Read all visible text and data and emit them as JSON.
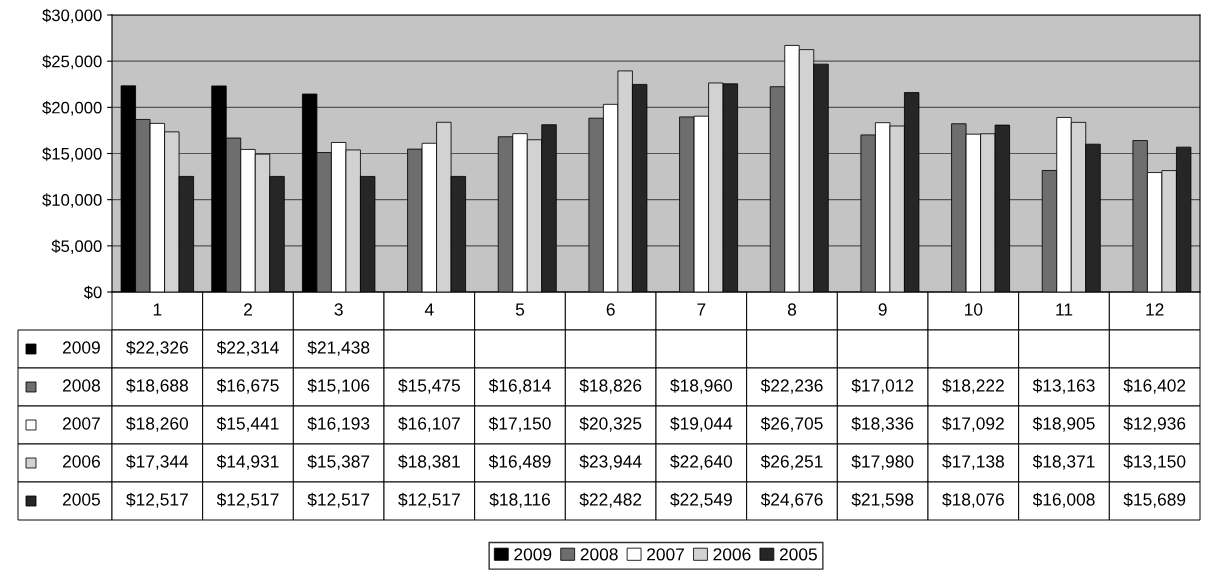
{
  "chart_data": {
    "type": "bar",
    "categories": [
      "1",
      "2",
      "3",
      "4",
      "5",
      "6",
      "7",
      "8",
      "9",
      "10",
      "11",
      "12"
    ],
    "series": [
      {
        "name": "2009",
        "color": "#000000",
        "values": [
          22326,
          22314,
          21438,
          null,
          null,
          null,
          null,
          null,
          null,
          null,
          null,
          null
        ],
        "value_labels": [
          "$22,326",
          "$22,314",
          "$21,438",
          null,
          null,
          null,
          null,
          null,
          null,
          null,
          null,
          null
        ]
      },
      {
        "name": "2008",
        "color": "#6e6e6e",
        "values": [
          18688,
          16675,
          15106,
          15475,
          16814,
          18826,
          18960,
          22236,
          17012,
          18222,
          13163,
          16402
        ],
        "value_labels": [
          "$18,688",
          "$16,675",
          "$15,106",
          "$15,475",
          "$16,814",
          "$18,826",
          "$18,960",
          "$22,236",
          "$17,012",
          "$18,222",
          "$13,163",
          "$16,402"
        ]
      },
      {
        "name": "2007",
        "color": "#ffffff",
        "values": [
          18260,
          15441,
          16193,
          16107,
          17150,
          20325,
          19044,
          26705,
          18336,
          17092,
          18905,
          12936
        ],
        "value_labels": [
          "$18,260",
          "$15,441",
          "$16,193",
          "$16,107",
          "$17,150",
          "$20,325",
          "$19,044",
          "$26,705",
          "$18,336",
          "$17,092",
          "$18,905",
          "$12,936"
        ]
      },
      {
        "name": "2006",
        "color": "#d2d2d2",
        "values": [
          17344,
          14931,
          15387,
          18381,
          16489,
          23944,
          22640,
          26251,
          17980,
          17138,
          18371,
          13150
        ],
        "value_labels": [
          "$17,344",
          "$14,931",
          "$15,387",
          "$18,381",
          "$16,489",
          "$23,944",
          "$22,640",
          "$26,251",
          "$17,980",
          "$17,138",
          "$18,371",
          "$13,150"
        ]
      },
      {
        "name": "2005",
        "color": "#262626",
        "values": [
          12517,
          12517,
          12517,
          12517,
          18116,
          22482,
          22549,
          24676,
          21598,
          18076,
          16008,
          15689
        ],
        "value_labels": [
          "$12,517",
          "$12,517",
          "$12,517",
          "$12,517",
          "$18,116",
          "$22,482",
          "$22,549",
          "$24,676",
          "$21,598",
          "$18,076",
          "$16,008",
          "$15,689"
        ]
      }
    ],
    "ylim": [
      0,
      30000
    ],
    "yticks": [
      {
        "value": 0,
        "label": "$0"
      },
      {
        "value": 5000,
        "label": "$5,000"
      },
      {
        "value": 10000,
        "label": "$10,000"
      },
      {
        "value": 15000,
        "label": "$15,000"
      },
      {
        "value": 20000,
        "label": "$20,000"
      },
      {
        "value": 25000,
        "label": "$25,000"
      },
      {
        "value": 30000,
        "label": "$30,000"
      }
    ],
    "grid": "y",
    "legend": "bottom"
  }
}
